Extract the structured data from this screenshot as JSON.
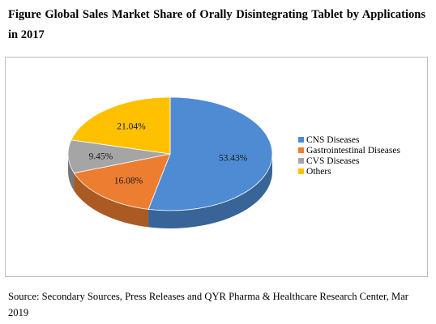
{
  "figure": {
    "title": "Figure Global Sales Market Share of Orally Disintegrating Tablet by Applications in 2017",
    "source": "Source: Secondary Sources, Press Releases and QYR Pharma & Healthcare Research Center, Mar 2019"
  },
  "chart_data": {
    "type": "pie",
    "title": "Global Sales Market Share of Orally Disintegrating Tablet by Applications in 2017",
    "style": "3d",
    "legend_position": "right",
    "categories": [
      "CNS Diseases",
      "Gastrointestinal Diseases",
      "CVS Diseases",
      "Others"
    ],
    "values": [
      53.43,
      16.08,
      9.45,
      21.04
    ],
    "labels": [
      "53.43%",
      "16.08%",
      "9.45%",
      "21.04%"
    ],
    "colors": [
      "#4e8bd2",
      "#ed7d31",
      "#a5a5a5",
      "#ffc000"
    ],
    "unit": "%"
  }
}
